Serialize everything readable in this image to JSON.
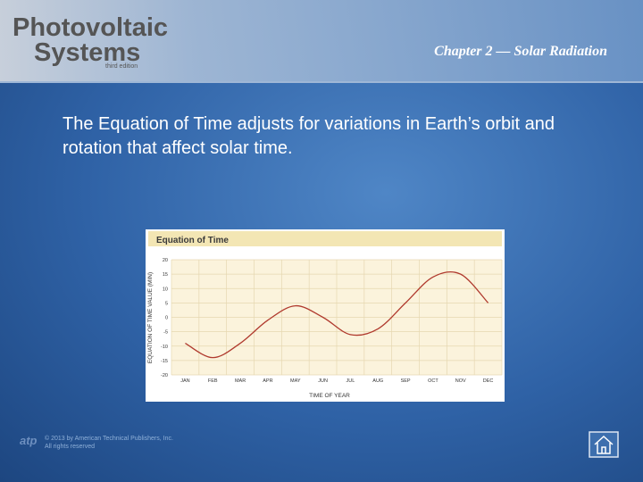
{
  "header": {
    "logo_line1": "Photovoltaic",
    "logo_line2": "Systems",
    "edition": "third edition",
    "chapter": "Chapter 2 — Solar Radiation"
  },
  "body": {
    "text": "The Equation of Time adjusts for variations in Earth’s orbit and rotation that affect solar time."
  },
  "chart_data": {
    "type": "line",
    "title": "Equation of Time",
    "x_label": "TIME OF YEAR",
    "y_label": "EQUATION OF TIME VALUE (MIN)",
    "categories": [
      "JAN",
      "FEB",
      "MAR",
      "APR",
      "MAY",
      "JUN",
      "JUL",
      "AUG",
      "SEP",
      "OCT",
      "NOV",
      "DEC"
    ],
    "values": [
      -9,
      -14,
      -9,
      -1,
      4,
      0,
      -6,
      -4,
      5,
      14,
      15,
      5
    ],
    "color": "#b03a2e",
    "ylim": [
      -20,
      20
    ],
    "yticks": [
      -20,
      -15,
      -10,
      -5,
      0,
      5,
      10,
      15,
      20
    ],
    "grid": true
  },
  "footer": {
    "logo": "atp",
    "copyright": "© 2013 by American Technical Publishers, Inc.",
    "rights": "All rights reserved"
  }
}
